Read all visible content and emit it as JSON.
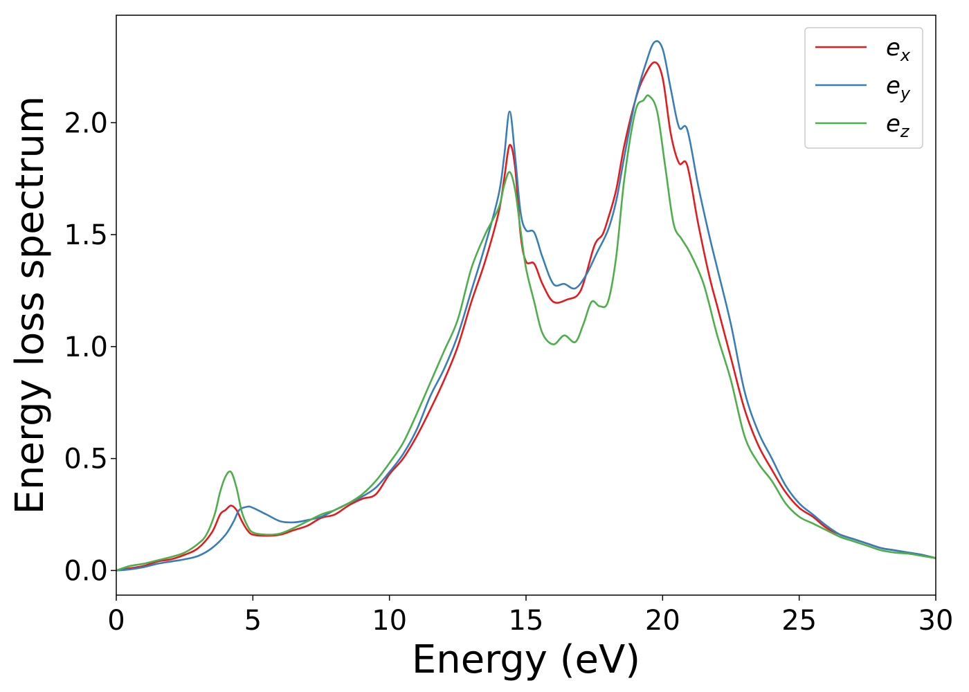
{
  "chart_data": {
    "type": "line",
    "title": "",
    "xlabel": "Energy (eV)",
    "ylabel": "Energy loss spectrum",
    "xlim": [
      0,
      30
    ],
    "ylim": [
      -0.11,
      2.48
    ],
    "xticks": [
      0,
      5,
      10,
      15,
      20,
      25,
      30
    ],
    "xtick_labels": [
      "0",
      "5",
      "10",
      "15",
      "20",
      "25",
      "30"
    ],
    "yticks": [
      0.0,
      0.5,
      1.0,
      1.5,
      2.0
    ],
    "ytick_labels": [
      "0.0",
      "0.5",
      "1.0",
      "1.5",
      "2.0"
    ],
    "grid": false,
    "legend_position": "top-right",
    "series": [
      {
        "name_base": "e",
        "name_sub": "x",
        "color": "#e41a1c",
        "points": [
          [
            0,
            0
          ],
          [
            0.5,
            0.01
          ],
          [
            1,
            0.02
          ],
          [
            1.5,
            0.04
          ],
          [
            2,
            0.05
          ],
          [
            2.5,
            0.07
          ],
          [
            3,
            0.1
          ],
          [
            3.5,
            0.17
          ],
          [
            3.8,
            0.25
          ],
          [
            4,
            0.27
          ],
          [
            4.2,
            0.29
          ],
          [
            4.4,
            0.27
          ],
          [
            4.6,
            0.22
          ],
          [
            4.8,
            0.18
          ],
          [
            5,
            0.16
          ],
          [
            5.5,
            0.155
          ],
          [
            6,
            0.16
          ],
          [
            6.5,
            0.18
          ],
          [
            7,
            0.2
          ],
          [
            7.5,
            0.235
          ],
          [
            8,
            0.25
          ],
          [
            8.5,
            0.29
          ],
          [
            9,
            0.32
          ],
          [
            9.5,
            0.34
          ],
          [
            10,
            0.43
          ],
          [
            10.5,
            0.5
          ],
          [
            11,
            0.6
          ],
          [
            11.5,
            0.72
          ],
          [
            12,
            0.85
          ],
          [
            12.5,
            1.0
          ],
          [
            13,
            1.2
          ],
          [
            13.5,
            1.38
          ],
          [
            14,
            1.6
          ],
          [
            14.2,
            1.75
          ],
          [
            14.4,
            1.9
          ],
          [
            14.6,
            1.8
          ],
          [
            14.8,
            1.5
          ],
          [
            15,
            1.38
          ],
          [
            15.3,
            1.37
          ],
          [
            15.6,
            1.28
          ],
          [
            16,
            1.2
          ],
          [
            16.5,
            1.21
          ],
          [
            17,
            1.25
          ],
          [
            17.5,
            1.45
          ],
          [
            17.8,
            1.5
          ],
          [
            18,
            1.57
          ],
          [
            18.3,
            1.7
          ],
          [
            18.6,
            1.9
          ],
          [
            19,
            2.1
          ],
          [
            19.3,
            2.2
          ],
          [
            19.7,
            2.27
          ],
          [
            20,
            2.2
          ],
          [
            20.3,
            1.95
          ],
          [
            20.6,
            1.82
          ],
          [
            20.9,
            1.81
          ],
          [
            21.3,
            1.55
          ],
          [
            21.7,
            1.32
          ],
          [
            22,
            1.18
          ],
          [
            22.5,
            0.95
          ],
          [
            23,
            0.72
          ],
          [
            23.5,
            0.56
          ],
          [
            24,
            0.45
          ],
          [
            24.5,
            0.35
          ],
          [
            25,
            0.28
          ],
          [
            25.5,
            0.24
          ],
          [
            26,
            0.19
          ],
          [
            26.5,
            0.16
          ],
          [
            27,
            0.14
          ],
          [
            27.5,
            0.12
          ],
          [
            28,
            0.1
          ],
          [
            28.5,
            0.09
          ],
          [
            29,
            0.08
          ],
          [
            29.5,
            0.07
          ],
          [
            30,
            0.055
          ]
        ]
      },
      {
        "name_base": "e",
        "name_sub": "y",
        "color": "#377eb8",
        "points": [
          [
            0,
            0
          ],
          [
            0.5,
            0.005
          ],
          [
            1,
            0.015
          ],
          [
            1.5,
            0.03
          ],
          [
            2,
            0.04
          ],
          [
            2.5,
            0.05
          ],
          [
            3,
            0.065
          ],
          [
            3.5,
            0.1
          ],
          [
            4,
            0.16
          ],
          [
            4.3,
            0.22
          ],
          [
            4.5,
            0.27
          ],
          [
            4.8,
            0.285
          ],
          [
            5,
            0.28
          ],
          [
            5.5,
            0.25
          ],
          [
            6,
            0.22
          ],
          [
            6.5,
            0.215
          ],
          [
            7,
            0.225
          ],
          [
            7.5,
            0.24
          ],
          [
            8,
            0.27
          ],
          [
            8.5,
            0.3
          ],
          [
            9,
            0.33
          ],
          [
            9.5,
            0.37
          ],
          [
            10,
            0.44
          ],
          [
            10.5,
            0.52
          ],
          [
            11,
            0.63
          ],
          [
            11.5,
            0.78
          ],
          [
            12,
            0.9
          ],
          [
            12.5,
            1.05
          ],
          [
            13,
            1.25
          ],
          [
            13.5,
            1.45
          ],
          [
            14,
            1.68
          ],
          [
            14.2,
            1.85
          ],
          [
            14.4,
            2.05
          ],
          [
            14.6,
            1.85
          ],
          [
            14.8,
            1.6
          ],
          [
            15,
            1.52
          ],
          [
            15.3,
            1.51
          ],
          [
            15.6,
            1.4
          ],
          [
            16,
            1.28
          ],
          [
            16.4,
            1.28
          ],
          [
            16.8,
            1.26
          ],
          [
            17.2,
            1.32
          ],
          [
            17.6,
            1.42
          ],
          [
            18,
            1.52
          ],
          [
            18.3,
            1.65
          ],
          [
            18.6,
            1.85
          ],
          [
            19,
            2.1
          ],
          [
            19.4,
            2.27
          ],
          [
            19.7,
            2.36
          ],
          [
            20,
            2.33
          ],
          [
            20.3,
            2.15
          ],
          [
            20.6,
            1.98
          ],
          [
            20.9,
            1.97
          ],
          [
            21.3,
            1.72
          ],
          [
            21.7,
            1.5
          ],
          [
            22,
            1.35
          ],
          [
            22.5,
            1.1
          ],
          [
            23,
            0.8
          ],
          [
            23.5,
            0.62
          ],
          [
            24,
            0.5
          ],
          [
            24.5,
            0.38
          ],
          [
            25,
            0.3
          ],
          [
            25.5,
            0.25
          ],
          [
            26,
            0.2
          ],
          [
            26.5,
            0.16
          ],
          [
            27,
            0.14
          ],
          [
            27.5,
            0.12
          ],
          [
            28,
            0.1
          ],
          [
            28.5,
            0.09
          ],
          [
            29,
            0.08
          ],
          [
            29.5,
            0.07
          ],
          [
            30,
            0.055
          ]
        ]
      },
      {
        "name_base": "e",
        "name_sub": "z",
        "color": "#4daf4a",
        "points": [
          [
            0,
            0
          ],
          [
            0.5,
            0.02
          ],
          [
            1,
            0.03
          ],
          [
            1.5,
            0.045
          ],
          [
            2,
            0.06
          ],
          [
            2.5,
            0.08
          ],
          [
            3,
            0.12
          ],
          [
            3.3,
            0.16
          ],
          [
            3.6,
            0.25
          ],
          [
            3.8,
            0.35
          ],
          [
            4,
            0.42
          ],
          [
            4.2,
            0.44
          ],
          [
            4.4,
            0.37
          ],
          [
            4.6,
            0.26
          ],
          [
            4.8,
            0.2
          ],
          [
            5,
            0.17
          ],
          [
            5.5,
            0.16
          ],
          [
            6,
            0.165
          ],
          [
            6.5,
            0.19
          ],
          [
            7,
            0.22
          ],
          [
            7.5,
            0.25
          ],
          [
            8,
            0.27
          ],
          [
            8.5,
            0.3
          ],
          [
            9,
            0.34
          ],
          [
            9.5,
            0.4
          ],
          [
            10,
            0.48
          ],
          [
            10.5,
            0.57
          ],
          [
            11,
            0.7
          ],
          [
            11.5,
            0.84
          ],
          [
            12,
            0.98
          ],
          [
            12.5,
            1.12
          ],
          [
            13,
            1.35
          ],
          [
            13.5,
            1.5
          ],
          [
            14,
            1.62
          ],
          [
            14.2,
            1.72
          ],
          [
            14.4,
            1.78
          ],
          [
            14.6,
            1.7
          ],
          [
            14.8,
            1.52
          ],
          [
            15,
            1.35
          ],
          [
            15.3,
            1.2
          ],
          [
            15.6,
            1.06
          ],
          [
            16,
            1.01
          ],
          [
            16.4,
            1.05
          ],
          [
            16.8,
            1.02
          ],
          [
            17.1,
            1.1
          ],
          [
            17.4,
            1.2
          ],
          [
            17.7,
            1.18
          ],
          [
            18,
            1.2
          ],
          [
            18.3,
            1.4
          ],
          [
            18.6,
            1.75
          ],
          [
            19,
            2.05
          ],
          [
            19.3,
            2.1
          ],
          [
            19.5,
            2.12
          ],
          [
            19.8,
            2.05
          ],
          [
            20.1,
            1.8
          ],
          [
            20.4,
            1.55
          ],
          [
            20.7,
            1.48
          ],
          [
            21,
            1.42
          ],
          [
            21.5,
            1.28
          ],
          [
            22,
            1.05
          ],
          [
            22.5,
            0.85
          ],
          [
            23,
            0.6
          ],
          [
            23.5,
            0.48
          ],
          [
            24,
            0.4
          ],
          [
            24.5,
            0.3
          ],
          [
            25,
            0.24
          ],
          [
            25.5,
            0.21
          ],
          [
            26,
            0.18
          ],
          [
            26.5,
            0.15
          ],
          [
            27,
            0.13
          ],
          [
            27.5,
            0.11
          ],
          [
            28,
            0.09
          ],
          [
            28.5,
            0.08
          ],
          [
            29,
            0.075
          ],
          [
            29.5,
            0.065
          ],
          [
            30,
            0.055
          ]
        ]
      }
    ]
  }
}
